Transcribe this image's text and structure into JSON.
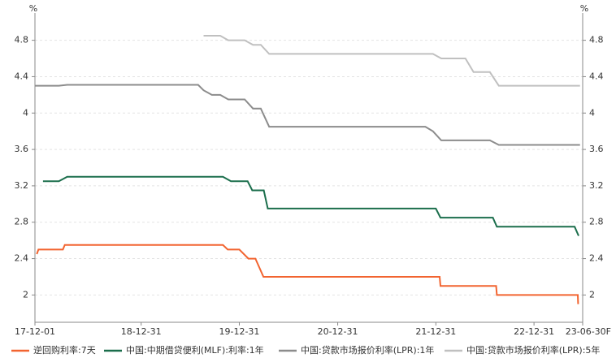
{
  "chart_data": {
    "type": "line",
    "y_label": "%",
    "y2_label": "%",
    "xlim": [
      "17-12-01",
      "23-06-30"
    ],
    "xticks": [
      "17-12-01",
      "18-12-31",
      "19-12-31",
      "20-12-31",
      "21-12-31",
      "22-12-31",
      {
        "value": "23-06-30",
        "label": "23-06-30F"
      }
    ],
    "ylim": [
      1.7,
      5.1
    ],
    "yticks": [
      2,
      2.4,
      2.8,
      3.2,
      3.6,
      4,
      4.4,
      4.8
    ],
    "y2lim": [
      1.7,
      5.1
    ],
    "y2ticks": [
      2,
      2.4,
      2.8,
      3.2,
      3.6,
      4,
      4.4,
      4.8
    ],
    "grid": true,
    "legend": "bottom",
    "series": [
      {
        "name": "逆回购利率:7天",
        "color": "#f26430",
        "x": [
          "17-12-08",
          "17-12-14",
          "18-03-15",
          "18-03-22",
          "19-10-31",
          "19-11-18",
          "19-12-31",
          "20-02-03",
          "20-02-29",
          "20-03-30",
          "22-01-14",
          "22-01-17",
          "22-08-12",
          "22-08-15",
          "23-06-12",
          "23-06-13"
        ],
        "values": [
          2.45,
          2.5,
          2.5,
          2.55,
          2.55,
          2.5,
          2.5,
          2.4,
          2.4,
          2.2,
          2.2,
          2.1,
          2.1,
          2.0,
          2.0,
          1.9
        ]
      },
      {
        "name": "中国:中期借贷便利(MLF):利率:1年",
        "color": "#1b6e4c",
        "x": [
          "17-12-31",
          "18-02-28",
          "18-03-31",
          "19-10-31",
          "19-11-30",
          "20-01-31",
          "20-02-17",
          "20-03-31",
          "20-04-15",
          "21-12-31",
          "22-01-17",
          "22-07-31",
          "22-08-15",
          "23-05-31",
          "23-06-15"
        ],
        "values": [
          3.25,
          3.25,
          3.3,
          3.3,
          3.25,
          3.25,
          3.15,
          3.15,
          2.95,
          2.95,
          2.85,
          2.85,
          2.75,
          2.75,
          2.65
        ]
      },
      {
        "name": "中国:贷款市场报价利率(LPR):1年",
        "color": "#8c8c8c",
        "x": [
          "17-12-01",
          "18-02-28",
          "18-03-31",
          "19-07-31",
          "19-08-20",
          "19-09-20",
          "19-10-21",
          "19-11-20",
          "20-01-20",
          "20-02-20",
          "20-03-20",
          "20-04-20",
          "21-11-22",
          "21-12-20",
          "22-01-20",
          "22-07-20",
          "22-08-22",
          "23-06-20"
        ],
        "values": [
          4.3,
          4.3,
          4.31,
          4.31,
          4.25,
          4.2,
          4.2,
          4.15,
          4.15,
          4.05,
          4.05,
          3.85,
          3.85,
          3.8,
          3.7,
          3.7,
          3.65,
          3.65
        ]
      },
      {
        "name": "中国:贷款市场报价利率(LPR):5年",
        "color": "#c0c0c0",
        "x": [
          "19-08-20",
          "19-10-21",
          "19-11-20",
          "20-01-20",
          "20-02-20",
          "20-03-20",
          "20-04-20",
          "21-12-20",
          "22-01-20",
          "22-04-20",
          "22-05-20",
          "22-07-20",
          "22-08-22",
          "23-06-20"
        ],
        "values": [
          4.85,
          4.85,
          4.8,
          4.8,
          4.75,
          4.75,
          4.65,
          4.65,
          4.6,
          4.6,
          4.45,
          4.45,
          4.3,
          4.3
        ]
      }
    ]
  }
}
